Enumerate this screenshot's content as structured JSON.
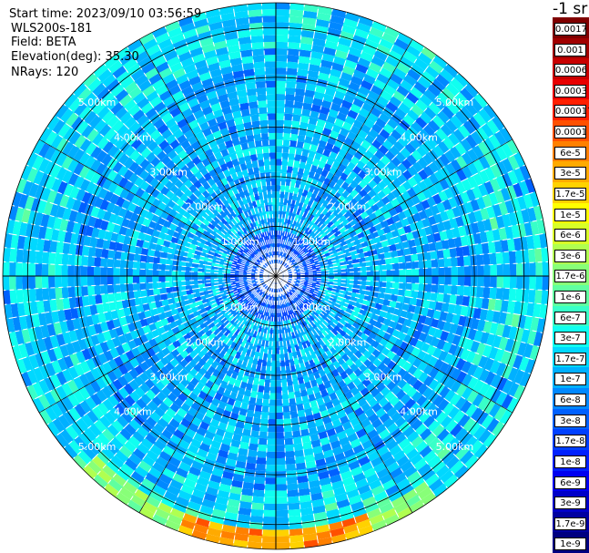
{
  "header": {
    "start_time": "Start time: 2023/09/10 03:56:59",
    "instrument": "WLS200s-181",
    "field": "Field: BETA",
    "elevation": "Elevation(deg): 35.30",
    "nrays": "NRays: 120"
  },
  "colorbar": {
    "unit": "-1 sr",
    "labels": [
      "0.0017",
      "0.001",
      "0.0006",
      "0.0003",
      "0.00017",
      "0.0001",
      "6e-5",
      "3e-5",
      "1.7e-5",
      "1e-5",
      "6e-6",
      "3e-6",
      "1.7e-6",
      "1e-6",
      "6e-7",
      "3e-7",
      "1.7e-7",
      "1e-7",
      "6e-8",
      "3e-8",
      "1.7e-8",
      "1e-8",
      "6e-9",
      "3e-9",
      "1.7e-9",
      "1e-9"
    ],
    "colors": [
      "#7f0000",
      "#a00000",
      "#c80000",
      "#e80000",
      "#ff2000",
      "#ff5000",
      "#ff8000",
      "#ffaa00",
      "#ffd200",
      "#ffff00",
      "#d8ff28",
      "#b0ff50",
      "#88ff78",
      "#60ffa0",
      "#38ffc8",
      "#10fff0",
      "#00d8ff",
      "#00b0ff",
      "#0088ff",
      "#0060ff",
      "#0040ff",
      "#0020ff",
      "#0000f0",
      "#0000c8",
      "#0000a0",
      "#000080"
    ]
  },
  "chart_data": {
    "type": "heatmap",
    "projection": "polar (PPI)",
    "nrays": 120,
    "range_rings_km": [
      1.0,
      2.0,
      3.0,
      4.0,
      5.0
    ],
    "ring_labels": [
      "1.00km",
      "2.00km",
      "3.00km",
      "4.00km",
      "5.00km"
    ],
    "max_range_km": 5.5,
    "scale": "log",
    "field": "BETA",
    "value_range": [
      1e-09,
      0.0017
    ],
    "typical_value": 1e-07,
    "near_range_value": 3e-08,
    "hotspot": {
      "azimuth_deg_range": [
        160,
        200
      ],
      "range_km": [
        5.2,
        5.5
      ],
      "value": 3e-05
    }
  }
}
